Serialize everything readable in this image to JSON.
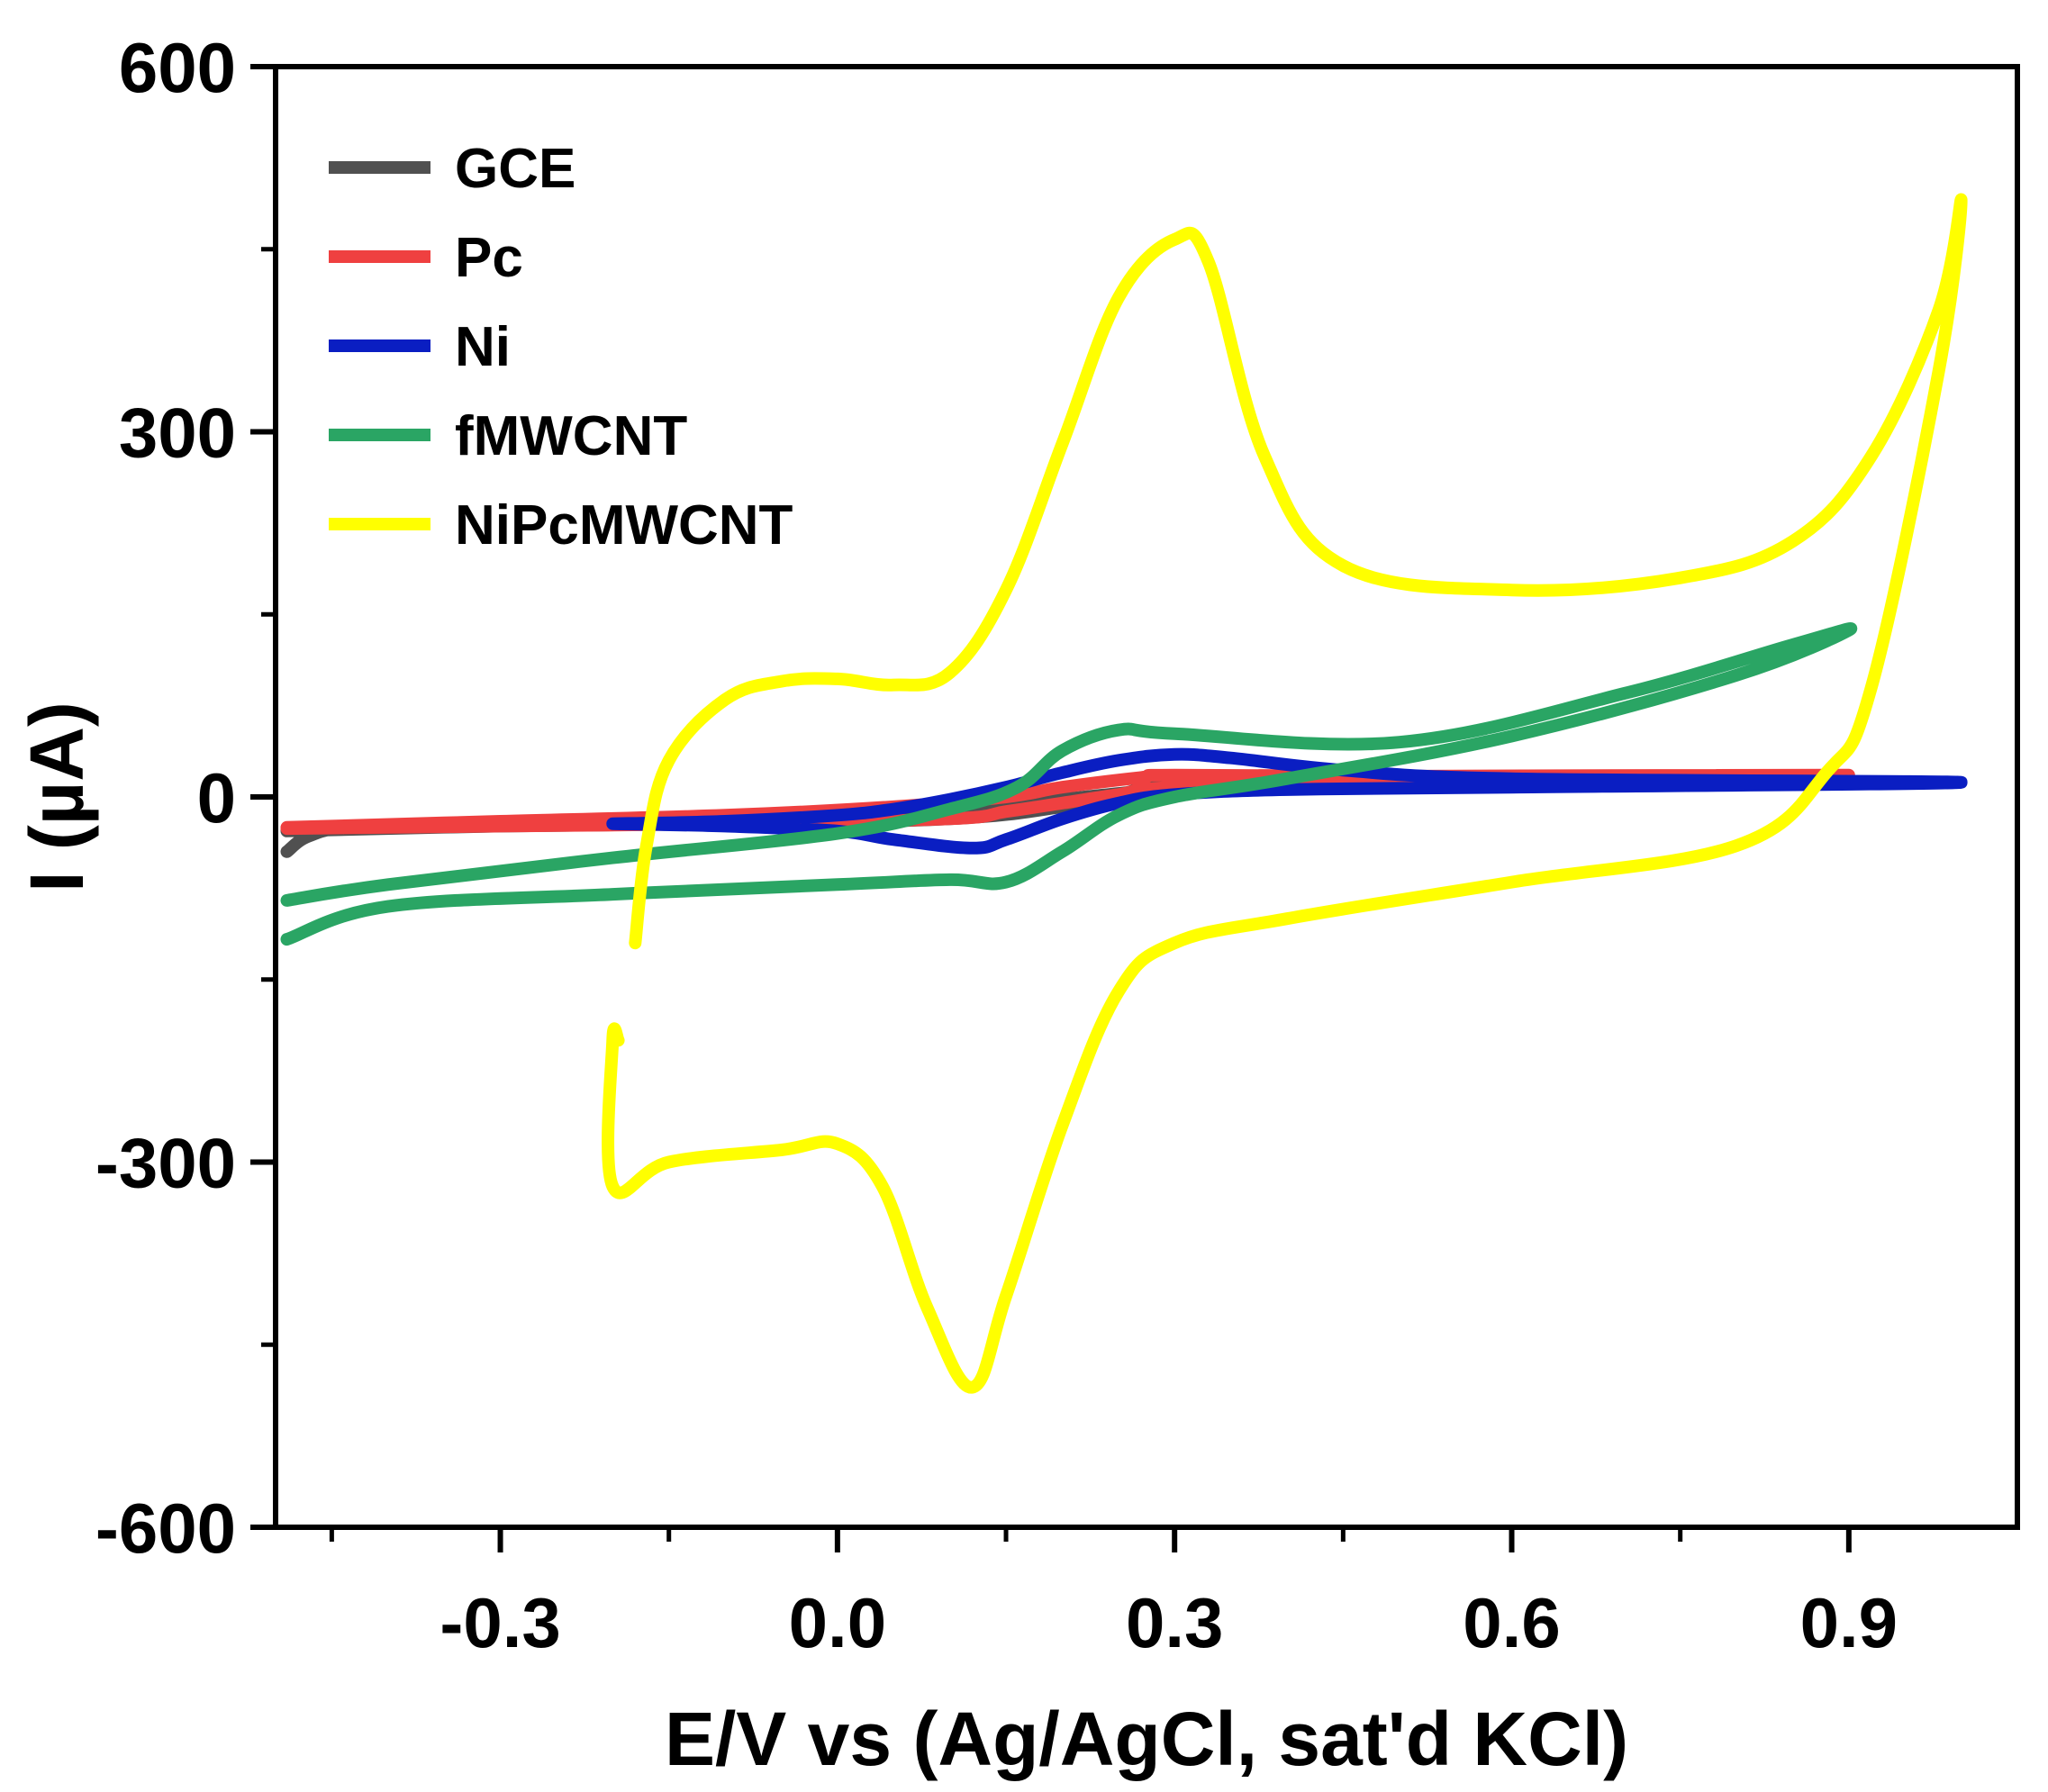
{
  "chart_data": {
    "type": "line",
    "title": "",
    "xlabel": "E/V vs (Ag/AgCl, sat'd KCl)",
    "ylabel": "I (µA)",
    "xlim": [
      -0.5,
      1.05
    ],
    "ylim": [
      -600,
      600
    ],
    "xticks": [
      -0.3,
      0.0,
      0.3,
      0.6,
      0.9
    ],
    "xtick_labels": [
      "-0.3",
      "0.0",
      "0.3",
      "0.6",
      "0.9"
    ],
    "yticks": [
      -600,
      -300,
      0,
      300,
      600
    ],
    "ytick_labels": [
      "-600",
      "-300",
      "0",
      "300",
      "600"
    ],
    "legend_position": "top-left",
    "series": [
      {
        "name": "GCE",
        "color": "#505050",
        "x": [
          -0.49,
          -0.47,
          -0.43,
          -0.3,
          -0.1,
          0.1,
          0.2,
          0.28,
          0.3,
          0.5,
          0.9,
          0.5,
          0.3,
          0.25,
          0.2,
          0.1,
          -0.1,
          -0.3,
          -0.49
        ],
        "y": [
          -45,
          -32,
          -25,
          -22,
          -18,
          -12,
          -2,
          6,
          10,
          12,
          15,
          12,
          8,
          2,
          -8,
          -18,
          -22,
          -24,
          -28
        ]
      },
      {
        "name": "Pc",
        "color": "#ef4040",
        "x": [
          -0.49,
          -0.3,
          -0.1,
          0.05,
          0.15,
          0.2,
          0.27,
          0.3,
          0.5,
          0.9,
          0.5,
          0.3,
          0.25,
          0.2,
          0.15,
          0.1,
          -0.1,
          -0.3,
          -0.49
        ],
        "y": [
          -25,
          -20,
          -15,
          -8,
          0,
          8,
          16,
          18,
          17,
          18,
          12,
          8,
          2,
          -5,
          -12,
          -18,
          -22,
          -24,
          -26
        ]
      },
      {
        "name": "Ni",
        "color": "#0a1ec2",
        "x": [
          -0.2,
          -0.1,
          0.0,
          0.05,
          0.1,
          0.15,
          0.2,
          0.25,
          0.3,
          0.35,
          0.45,
          0.6,
          1.0,
          0.6,
          0.4,
          0.3,
          0.25,
          0.2,
          0.15,
          0.12,
          0.05,
          0.0,
          -0.1,
          -0.2
        ],
        "y": [
          -22,
          -20,
          -15,
          -10,
          -2,
          8,
          20,
          30,
          35,
          32,
          22,
          15,
          12,
          8,
          6,
          2,
          -5,
          -18,
          -35,
          -42,
          -35,
          -28,
          -24,
          -22
        ]
      },
      {
        "name": "fMWCNT",
        "color": "#2aa564",
        "x": [
          -0.49,
          -0.4,
          -0.2,
          0.0,
          0.1,
          0.15,
          0.2,
          0.25,
          0.3,
          0.4,
          0.6,
          0.8,
          0.9,
          0.85,
          0.7,
          0.5,
          0.3,
          0.25,
          0.2,
          0.16,
          0.1,
          0.0,
          -0.2,
          -0.4,
          -0.49
        ],
        "y": [
          -117,
          -90,
          -80,
          -72,
          -68,
          -70,
          -45,
          -15,
          0,
          15,
          50,
          100,
          137,
          125,
          85,
          45,
          52,
          55,
          38,
          8,
          -10,
          -30,
          -50,
          -72,
          -85
        ]
      },
      {
        "name": "NiPcMWCNT",
        "color": "#ffff00",
        "x": [
          -0.18,
          -0.17,
          -0.15,
          -0.1,
          -0.05,
          0.0,
          0.05,
          0.1,
          0.15,
          0.2,
          0.25,
          0.3,
          0.33,
          0.38,
          0.45,
          0.6,
          0.75,
          0.85,
          0.92,
          0.98,
          1.0,
          0.98,
          0.92,
          0.88,
          0.8,
          0.6,
          0.4,
          0.3,
          0.25,
          0.2,
          0.15,
          0.12,
          0.08,
          0.04,
          0.0,
          -0.05,
          -0.15,
          -0.2,
          -0.2,
          -0.195
        ],
        "y": [
          -120,
          -40,
          30,
          80,
          95,
          97,
          92,
          102,
          170,
          290,
          410,
          458,
          440,
          280,
          190,
          170,
          180,
          210,
          280,
          400,
          490,
          350,
          90,
          20,
          -40,
          -70,
          -100,
          -120,
          -160,
          -270,
          -410,
          -485,
          -420,
          -320,
          -285,
          -290,
          -300,
          -320,
          -200,
          -200
        ]
      }
    ]
  }
}
